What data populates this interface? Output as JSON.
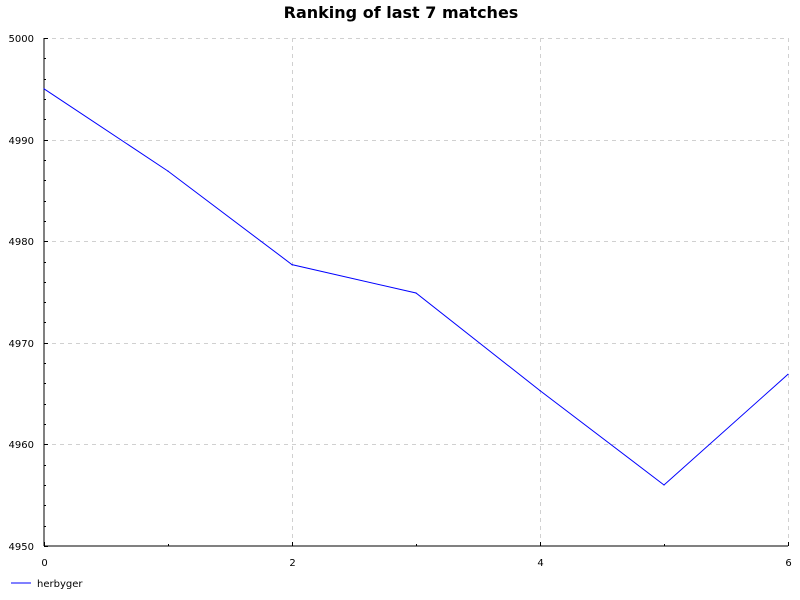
{
  "chart_data": {
    "type": "line",
    "title": "Ranking of last 7 matches",
    "xlabel": "",
    "ylabel": "",
    "xlim": [
      0,
      6
    ],
    "ylim": [
      4950,
      5000
    ],
    "x_ticks": [
      0,
      2,
      4,
      6
    ],
    "x_tick_labels": [
      "0",
      "2",
      "4",
      "6"
    ],
    "y_ticks": [
      4950,
      4960,
      4970,
      4980,
      4990,
      5000
    ],
    "y_tick_labels": [
      "4950",
      "4960",
      "4970",
      "4980",
      "4990",
      "5000"
    ],
    "grid": true,
    "legend_position": "bottom-left",
    "series": [
      {
        "name": "herbyger",
        "color": "#0000ff",
        "x": [
          0,
          1,
          2,
          3,
          4,
          5,
          6
        ],
        "y": [
          4995.0,
          4986.9,
          4977.7,
          4974.9,
          4965.3,
          4956.0,
          4966.9
        ]
      }
    ]
  }
}
